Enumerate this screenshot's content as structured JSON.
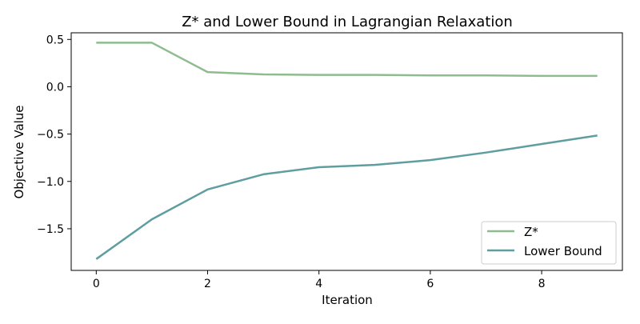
{
  "chart_data": {
    "type": "line",
    "title": "Z* and Lower Bound in Lagrangian Relaxation",
    "xlabel": "Iteration",
    "ylabel": "Objective Value",
    "x": [
      0,
      1,
      2,
      3,
      4,
      5,
      6,
      7,
      8,
      9
    ],
    "xlim": [
      -0.45,
      9.45
    ],
    "ylim": [
      -1.94,
      0.57
    ],
    "xticks": [
      0,
      2,
      4,
      6,
      8
    ],
    "yticks": [
      0.5,
      0.0,
      -0.5,
      -1.0,
      -1.5
    ],
    "ytick_labels": [
      "0.5",
      "0.0",
      "−0.5",
      "−1.0",
      "−1.5"
    ],
    "xtick_labels": [
      "0",
      "2",
      "4",
      "6",
      "8"
    ],
    "grid": false,
    "legend_position": "lower-right",
    "series": [
      {
        "name": "Z*",
        "color": "#8fbc8f",
        "values": [
          0.465,
          0.465,
          0.155,
          0.13,
          0.125,
          0.125,
          0.12,
          0.12,
          0.115,
          0.115
        ]
      },
      {
        "name": "Lower Bound",
        "color": "#5f9ea0",
        "values": [
          -1.82,
          -1.4,
          -1.085,
          -0.925,
          -0.85,
          -0.825,
          -0.775,
          -0.695,
          -0.605,
          -0.515
        ]
      }
    ]
  }
}
